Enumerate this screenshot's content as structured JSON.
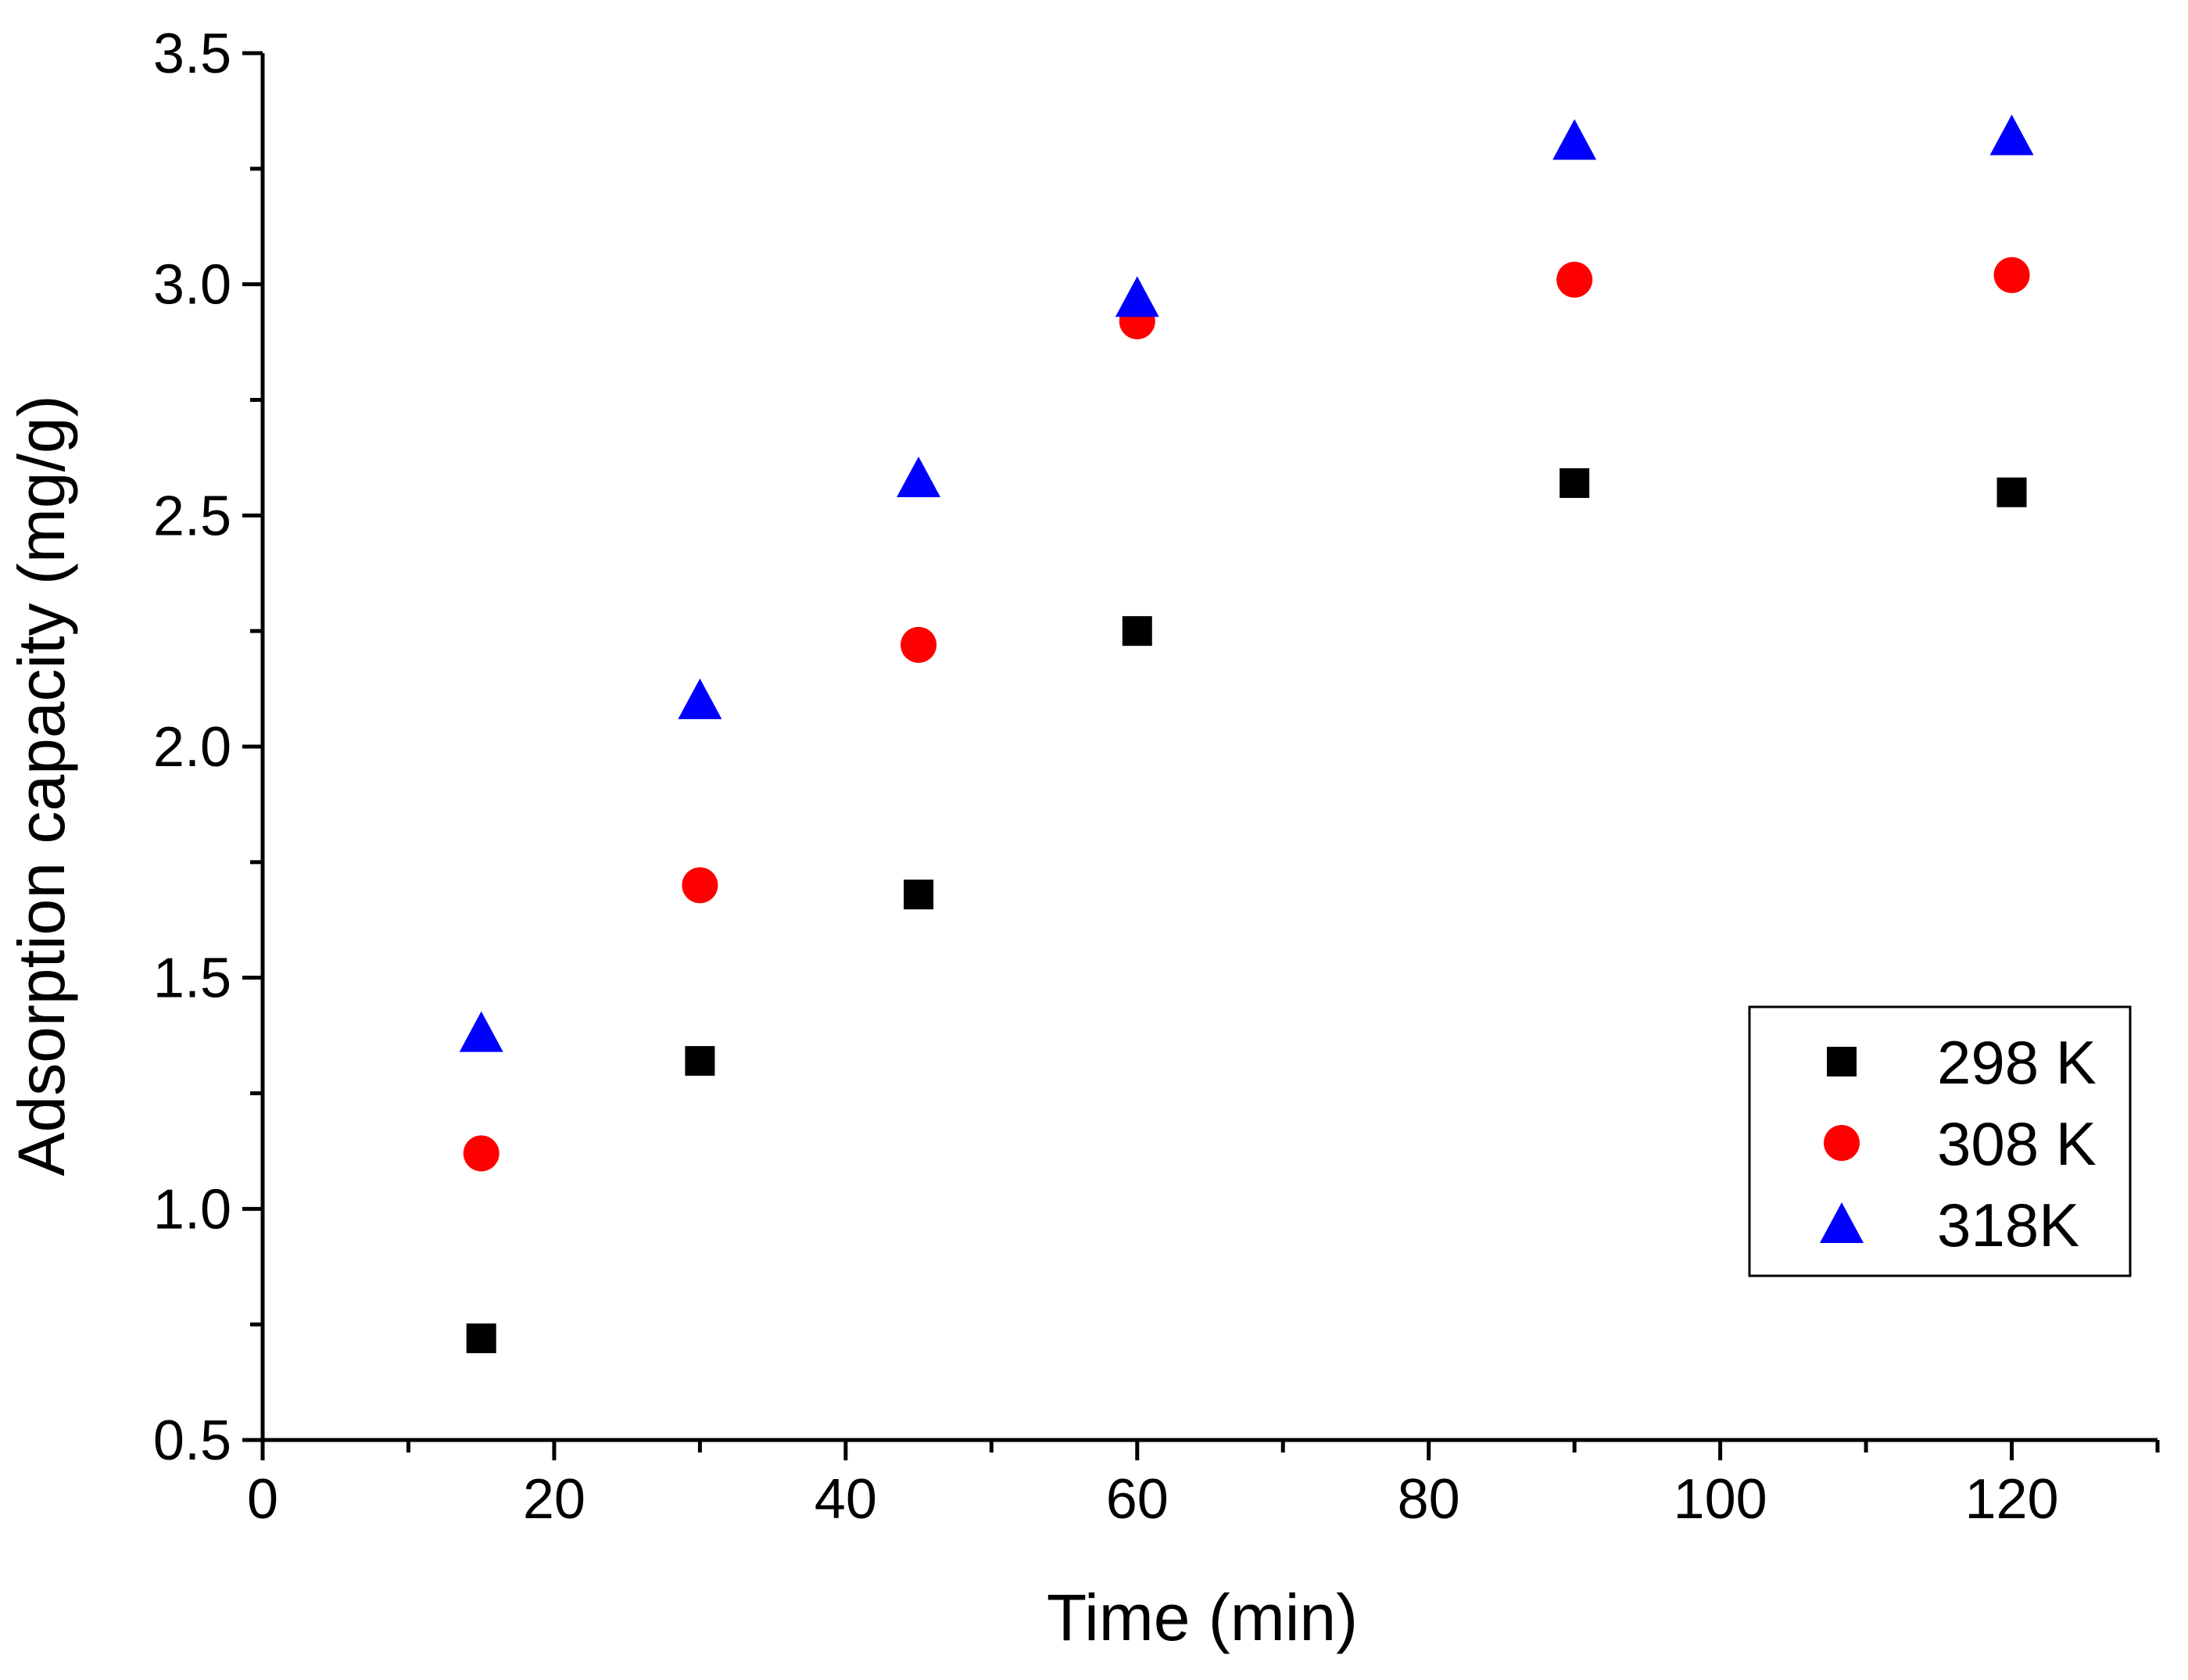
{
  "chart_data": {
    "type": "scatter",
    "title": "",
    "xlabel": "Time (min)",
    "ylabel": "Adsorption capacity (mg/g)",
    "xlim": [
      0,
      130
    ],
    "ylim": [
      0.5,
      3.5
    ],
    "x_ticks": [
      0,
      20,
      40,
      60,
      80,
      100,
      120
    ],
    "x_tick_labels": [
      "0",
      "20",
      "40",
      "60",
      "80",
      "100",
      "120"
    ],
    "y_ticks": [
      0.5,
      1.0,
      1.5,
      2.0,
      2.5,
      3.0,
      3.5
    ],
    "y_tick_labels": [
      "0.5",
      "1.0",
      "1.5",
      "2.0",
      "2.5",
      "3.0",
      "3.5"
    ],
    "grid": false,
    "legend_position": "right",
    "series": [
      {
        "name": "298 K",
        "marker": "square",
        "color": "#000000",
        "x": [
          15,
          30,
          45,
          60,
          90,
          120
        ],
        "y": [
          0.72,
          1.32,
          1.68,
          2.25,
          2.57,
          2.55
        ]
      },
      {
        "name": "308 K",
        "marker": "circle",
        "color": "#ff0000",
        "x": [
          15,
          30,
          45,
          60,
          90,
          120
        ],
        "y": [
          1.12,
          1.7,
          2.22,
          2.92,
          3.01,
          3.02
        ]
      },
      {
        "name": "318K",
        "marker": "triangle",
        "color": "#0000ff",
        "x": [
          15,
          30,
          45,
          60,
          90,
          120
        ],
        "y": [
          1.38,
          2.1,
          2.58,
          2.97,
          3.31,
          3.32
        ]
      }
    ]
  }
}
